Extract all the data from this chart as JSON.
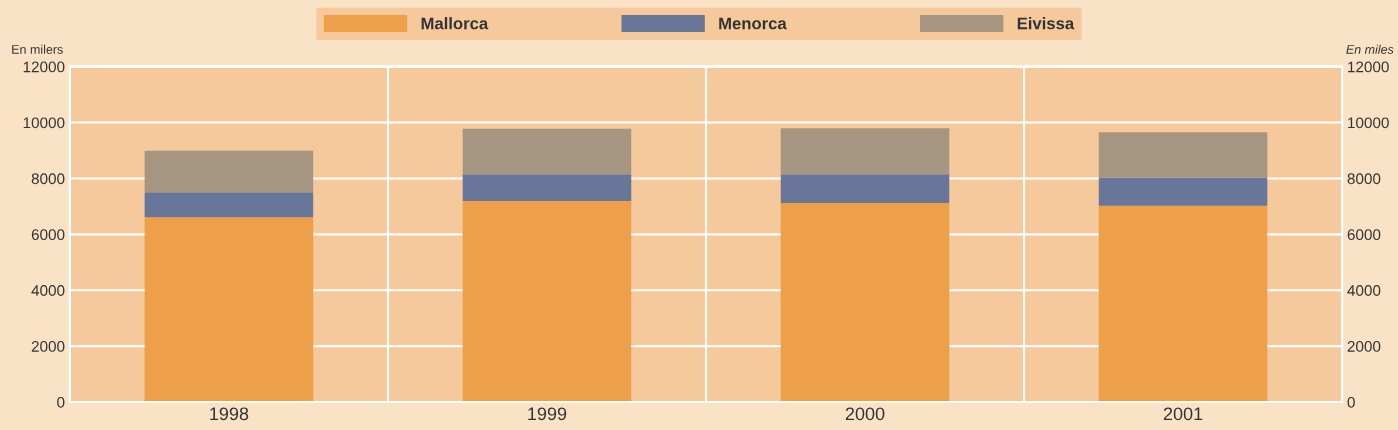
{
  "chart_data": {
    "type": "bar",
    "stacked": true,
    "ylabel": "En milers",
    "y2label": "En miles",
    "categories": [
      "1998",
      "1999",
      "2000",
      "2001"
    ],
    "series": [
      {
        "name": "Mallorca",
        "color": "#ed9f4a",
        "values": [
          6610,
          7190,
          7120,
          7020
        ]
      },
      {
        "name": "Menorca",
        "color": "#687799",
        "values": [
          900,
          960,
          1030,
          1010
        ]
      },
      {
        "name": "Eivissa",
        "color": "#a69580",
        "values": [
          1480,
          1630,
          1650,
          1620
        ]
      }
    ],
    "ylim": [
      0,
      12000
    ],
    "yticks": [
      0,
      2000,
      4000,
      6000,
      8000,
      10000,
      12000
    ],
    "y2lim": [
      0,
      12000
    ],
    "y2ticks": [
      0,
      2000,
      4000,
      6000,
      8000,
      10000,
      12000
    ],
    "grid": true,
    "legend": "top"
  }
}
